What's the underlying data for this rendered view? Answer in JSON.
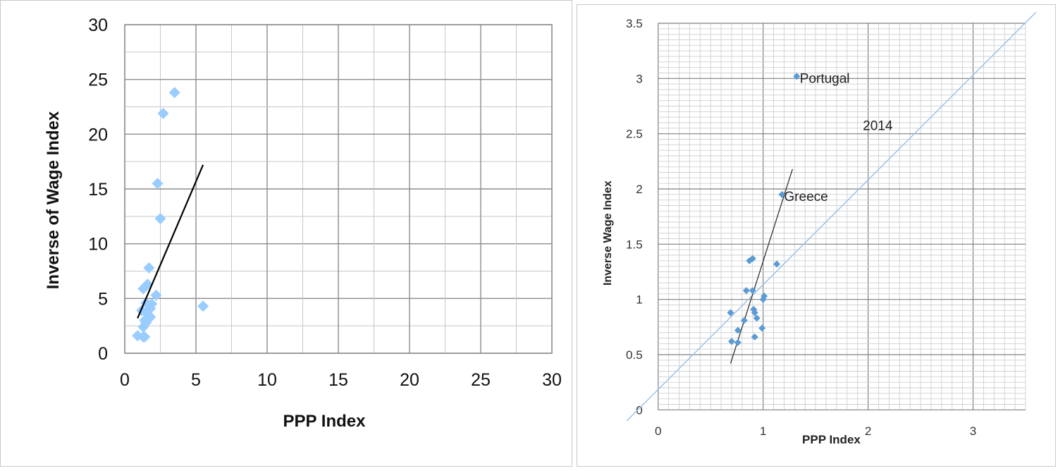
{
  "chart_data": [
    {
      "type": "scatter",
      "xlabel": "PPP Index",
      "ylabel": "Inverse of Wage Index",
      "xlim": [
        0,
        30
      ],
      "ylim": [
        0,
        30
      ],
      "xticks": [
        0,
        5,
        10,
        15,
        20,
        25,
        30
      ],
      "yticks": [
        0,
        5,
        10,
        15,
        20,
        25,
        30
      ],
      "grid": true,
      "marker_color": "#99ccff",
      "line_color": "#000000",
      "points": [
        {
          "x": 3.5,
          "y": 23.8
        },
        {
          "x": 2.7,
          "y": 21.9
        },
        {
          "x": 2.3,
          "y": 15.5
        },
        {
          "x": 2.5,
          "y": 12.3
        },
        {
          "x": 1.7,
          "y": 7.8
        },
        {
          "x": 1.6,
          "y": 6.3
        },
        {
          "x": 1.3,
          "y": 5.9
        },
        {
          "x": 2.2,
          "y": 5.3
        },
        {
          "x": 5.5,
          "y": 4.3
        },
        {
          "x": 1.5,
          "y": 4.6
        },
        {
          "x": 1.9,
          "y": 4.5
        },
        {
          "x": 1.2,
          "y": 3.9
        },
        {
          "x": 1.6,
          "y": 3.6
        },
        {
          "x": 1.8,
          "y": 3.3
        },
        {
          "x": 1.4,
          "y": 3.0
        },
        {
          "x": 1.3,
          "y": 2.4
        },
        {
          "x": 0.9,
          "y": 1.6
        },
        {
          "x": 1.3,
          "y": 1.5
        },
        {
          "x": 1.4,
          "y": 1.5
        },
        {
          "x": 1.8,
          "y": 4.1
        },
        {
          "x": 1.5,
          "y": 2.8
        }
      ],
      "trendline": [
        {
          "x": 0.9,
          "y": 3.2
        },
        {
          "x": 5.5,
          "y": 17.2
        }
      ]
    },
    {
      "type": "scatter",
      "xlabel": "PPP Index",
      "ylabel": "Inverse Wage Index",
      "xlim": [
        -0.3,
        3.5
      ],
      "ylim": [
        -0.1,
        3.5
      ],
      "xticks": [
        0,
        1,
        2,
        3
      ],
      "xtick_labels": [
        "0",
        "1",
        "2",
        "3"
      ],
      "yticks": [
        0,
        0.5,
        1,
        1.5,
        2,
        2.5,
        3,
        3.5
      ],
      "ytick_labels": [
        "0",
        "0.5",
        "1",
        "1.5",
        "2",
        "2.5",
        "3",
        "3.5"
      ],
      "grid": true,
      "marker_color": "#5b9bd5",
      "line_color": "#333333",
      "diagonal_color": "#9dc3e6",
      "annotations": [
        {
          "text": "Portugal",
          "x": 1.35,
          "y": 3.0
        },
        {
          "text": "Greece",
          "x": 1.2,
          "y": 1.93
        },
        {
          "text": "2014",
          "x": 1.95,
          "y": 2.57
        }
      ],
      "points": [
        {
          "x": 1.32,
          "y": 3.02
        },
        {
          "x": 1.18,
          "y": 1.95
        },
        {
          "x": 0.87,
          "y": 1.35
        },
        {
          "x": 0.9,
          "y": 1.37
        },
        {
          "x": 1.13,
          "y": 1.32
        },
        {
          "x": 0.84,
          "y": 1.08
        },
        {
          "x": 0.9,
          "y": 1.08
        },
        {
          "x": 1.01,
          "y": 1.03
        },
        {
          "x": 1.0,
          "y": 1.0
        },
        {
          "x": 0.91,
          "y": 0.91
        },
        {
          "x": 0.92,
          "y": 0.88
        },
        {
          "x": 0.94,
          "y": 0.83
        },
        {
          "x": 0.69,
          "y": 0.88
        },
        {
          "x": 0.82,
          "y": 0.81
        },
        {
          "x": 0.99,
          "y": 0.74
        },
        {
          "x": 0.76,
          "y": 0.72
        },
        {
          "x": 0.92,
          "y": 0.66
        },
        {
          "x": 0.7,
          "y": 0.62
        },
        {
          "x": 0.76,
          "y": 0.61
        }
      ],
      "trendline": [
        {
          "x": 0.69,
          "y": 0.42
        },
        {
          "x": 1.28,
          "y": 2.18
        }
      ],
      "diagonal": [
        {
          "x": -0.3,
          "y": -0.1
        },
        {
          "x": 3.6,
          "y": 3.6
        }
      ]
    }
  ]
}
